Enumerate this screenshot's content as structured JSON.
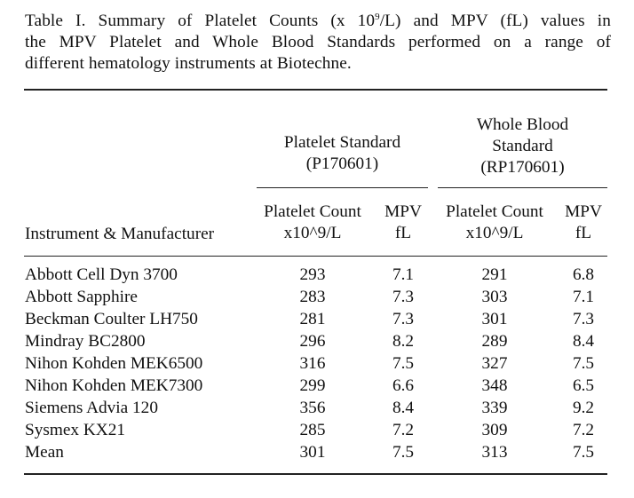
{
  "caption": {
    "line1_pre": "Table I. Summary of Platelet Counts (x 10",
    "line1_sup": "9",
    "line1_post": "/L) and MPV (fL) values in",
    "line2": "the MPV Platelet and Whole Blood Standards performed on a range of",
    "line3": "different hematology instruments at Biotechne."
  },
  "groups": {
    "platelet_standard": {
      "line1": "Platelet Standard",
      "line2": "(P170601)"
    },
    "whole_blood": {
      "line1": "Whole Blood",
      "line2": "Standard",
      "line3": "(RP170601)"
    }
  },
  "headers": {
    "instrument": "Instrument & Manufacturer",
    "ps_count_1": "Platelet Count",
    "ps_count_2": "x10^9/L",
    "ps_mpv_1": "MPV",
    "ps_mpv_2": "fL",
    "wb_count_1": "Platelet Count",
    "wb_count_2": "x10^9/L",
    "wb_mpv_1": "MPV",
    "wb_mpv_2": "fL"
  },
  "rows": [
    {
      "instrument": "Abbott Cell Dyn 3700",
      "ps_count": "293",
      "ps_mpv": "7.1",
      "wb_count": "291",
      "wb_mpv": "6.8"
    },
    {
      "instrument": "Abbott Sapphire",
      "ps_count": "283",
      "ps_mpv": "7.3",
      "wb_count": "303",
      "wb_mpv": "7.1"
    },
    {
      "instrument": "Beckman Coulter LH750",
      "ps_count": "281",
      "ps_mpv": "7.3",
      "wb_count": "301",
      "wb_mpv": "7.3"
    },
    {
      "instrument": "Mindray BC2800",
      "ps_count": "296",
      "ps_mpv": "8.2",
      "wb_count": "289",
      "wb_mpv": "8.4"
    },
    {
      "instrument": "Nihon Kohden MEK6500",
      "ps_count": "316",
      "ps_mpv": "7.5",
      "wb_count": "327",
      "wb_mpv": "7.5"
    },
    {
      "instrument": "Nihon Kohden MEK7300",
      "ps_count": "299",
      "ps_mpv": "6.6",
      "wb_count": "348",
      "wb_mpv": "6.5"
    },
    {
      "instrument": "Siemens Advia 120",
      "ps_count": "356",
      "ps_mpv": "8.4",
      "wb_count": "339",
      "wb_mpv": "9.2"
    },
    {
      "instrument": "Sysmex KX21",
      "ps_count": "285",
      "ps_mpv": "7.2",
      "wb_count": "309",
      "wb_mpv": "7.2"
    },
    {
      "instrument": "Mean",
      "ps_count": "301",
      "ps_mpv": "7.5",
      "wb_count": "313",
      "wb_mpv": "7.5"
    }
  ]
}
